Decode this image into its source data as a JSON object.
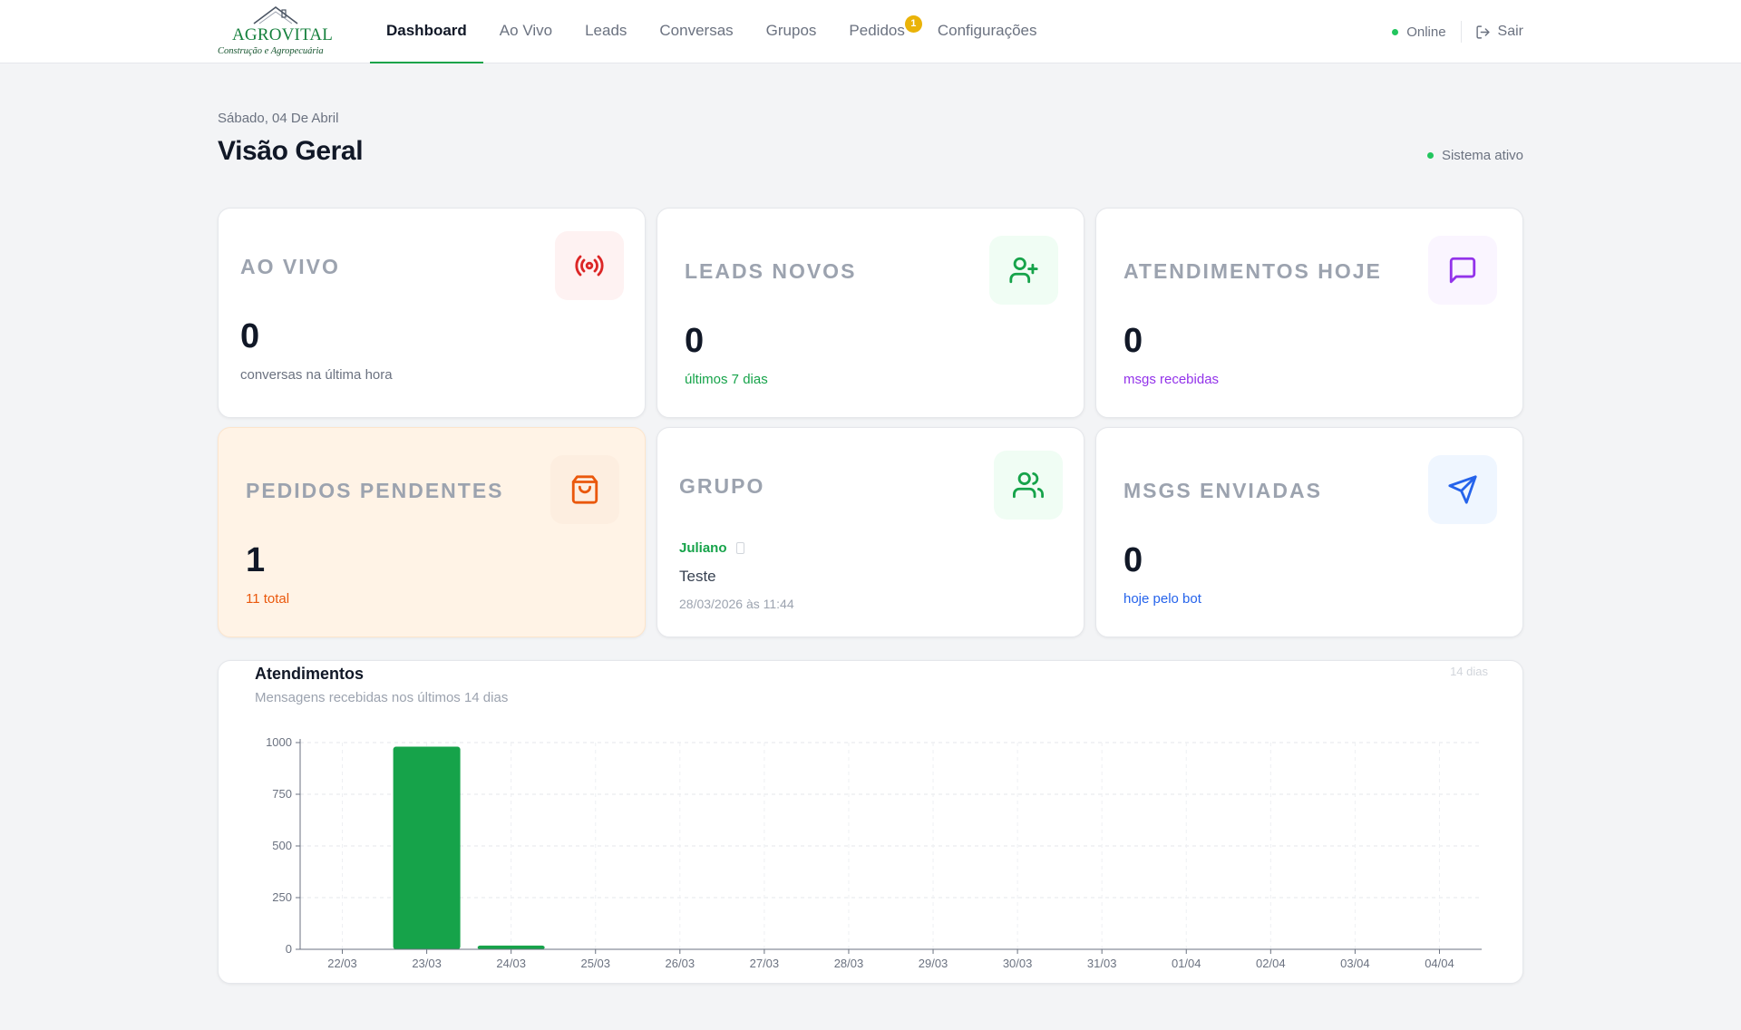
{
  "brand": {
    "name": "AGROVITAL",
    "tagline": "Construção e Agropecuária"
  },
  "nav": {
    "items": [
      {
        "label": "Dashboard",
        "active": true
      },
      {
        "label": "Ao Vivo"
      },
      {
        "label": "Leads"
      },
      {
        "label": "Conversas"
      },
      {
        "label": "Grupos"
      },
      {
        "label": "Pedidos",
        "badge": "1"
      },
      {
        "label": "Configurações"
      }
    ],
    "status": "Online",
    "logout": "Sair"
  },
  "header": {
    "date": "Sábado, 04 De Abril",
    "title": "Visão Geral",
    "system_status": "Sistema ativo"
  },
  "cards": {
    "ao_vivo": {
      "title": "Ao Vivo",
      "value": "0",
      "sub": "conversas na última hora",
      "icon": "broadcast-icon"
    },
    "leads": {
      "title": "Leads Novos",
      "value": "0",
      "sub": "últimos 7 dias",
      "icon": "user-plus-icon"
    },
    "atendimentos": {
      "title": "Atendimentos Hoje",
      "value": "0",
      "sub": "msgs recebidas",
      "icon": "message-icon"
    },
    "pedidos": {
      "title": "Pedidos Pendentes",
      "value": "1",
      "sub": "11 total",
      "icon": "shopping-bag-icon"
    },
    "grupo": {
      "title": "Grupo",
      "name": "Juliano",
      "message": "Teste",
      "time": "28/03/2026 às 11:44",
      "icon": "users-icon"
    },
    "enviadas": {
      "title": "Msgs Enviadas",
      "value": "0",
      "sub": "hoje pelo bot",
      "icon": "send-icon"
    }
  },
  "colors": {
    "green": "#16a34a",
    "red": "#dc2626",
    "purple": "#9333ea",
    "orange": "#ea580c",
    "blue": "#2563eb"
  },
  "chart": {
    "title": "Atendimentos",
    "subtitle": "Mensagens recebidas nos últimos 14 dias",
    "range_label": "14 dias"
  },
  "chart_data": {
    "type": "bar",
    "title": "Atendimentos",
    "categories": [
      "22/03",
      "23/03",
      "24/03",
      "25/03",
      "26/03",
      "27/03",
      "28/03",
      "29/03",
      "30/03",
      "31/03",
      "01/04",
      "02/04",
      "03/04",
      "04/04"
    ],
    "values": [
      0,
      980,
      18,
      0,
      0,
      0,
      0,
      0,
      0,
      0,
      0,
      0,
      0,
      0
    ],
    "ylim": [
      0,
      1000
    ],
    "yticks": [
      0,
      250,
      500,
      750,
      1000
    ],
    "grid": true,
    "color": "#16a34a"
  }
}
